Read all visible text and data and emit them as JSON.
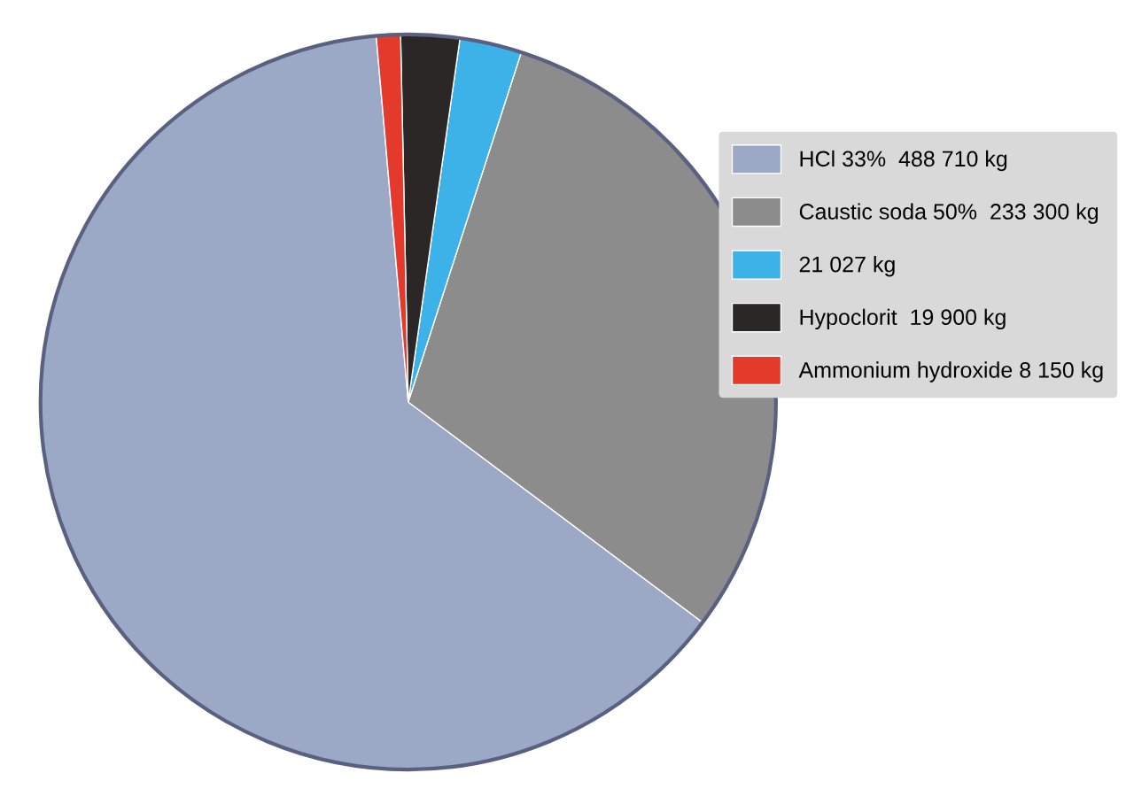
{
  "chart_data": {
    "type": "pie",
    "categories": [
      "HCl 33%  488 710 kg",
      "Caustic soda 50%  233 300 kg",
      "21 027 kg",
      "Hypoclorit  19 900 kg",
      "Ammonium hydroxide 8 150 kg"
    ],
    "values": [
      488710,
      233300,
      21027,
      19900,
      8150
    ],
    "colors": [
      "#9ba9c6",
      "#8c8c8c",
      "#3cb2e8",
      "#2b2727",
      "#e43a2c"
    ],
    "legend": "right"
  }
}
